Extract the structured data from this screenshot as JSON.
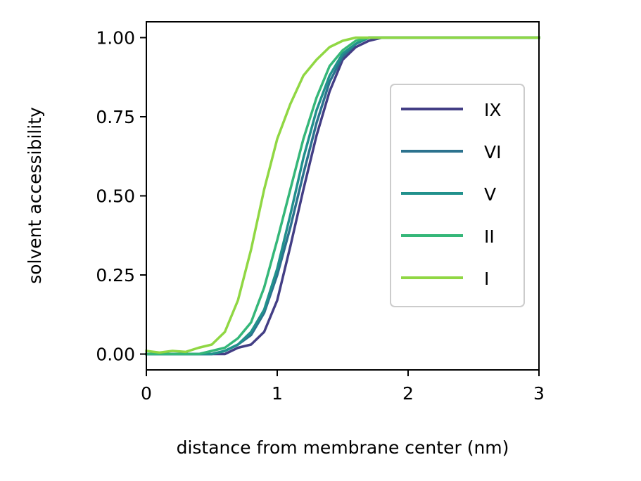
{
  "chart_data": {
    "type": "line",
    "xlabel": "distance from membrane center (nm)",
    "ylabel": "solvent accessibility",
    "xlim": [
      0,
      3
    ],
    "ylim": [
      -0.05,
      1.05
    ],
    "xticks": [
      {
        "value": 0,
        "label": "0"
      },
      {
        "value": 1,
        "label": "1"
      },
      {
        "value": 2,
        "label": "2"
      },
      {
        "value": 3,
        "label": "3"
      }
    ],
    "yticks": [
      {
        "value": 0.0,
        "label": "0.00"
      },
      {
        "value": 0.25,
        "label": "0.25"
      },
      {
        "value": 0.5,
        "label": "0.50"
      },
      {
        "value": 0.75,
        "label": "0.75"
      },
      {
        "value": 1.0,
        "label": "1.00"
      }
    ],
    "grid": false,
    "legend_position": "center-right",
    "x": [
      0.0,
      0.1,
      0.2,
      0.3,
      0.4,
      0.5,
      0.6,
      0.7,
      0.8,
      0.9,
      1.0,
      1.1,
      1.2,
      1.3,
      1.4,
      1.5,
      1.6,
      1.7,
      1.8,
      1.9,
      2.0,
      2.2,
      2.4,
      2.6,
      2.8,
      3.0
    ],
    "series": [
      {
        "name": "IX",
        "color": "#433e85",
        "values": [
          0.0,
          0.0,
          0.0,
          0.0,
          0.0,
          0.0,
          0.0,
          0.02,
          0.03,
          0.07,
          0.17,
          0.34,
          0.52,
          0.69,
          0.83,
          0.93,
          0.97,
          0.99,
          1.0,
          1.0,
          1.0,
          1.0,
          1.0,
          1.0,
          1.0,
          1.0
        ]
      },
      {
        "name": "VI",
        "color": "#2c728e",
        "values": [
          0.0,
          0.0,
          0.0,
          0.0,
          0.0,
          0.0,
          0.01,
          0.03,
          0.06,
          0.13,
          0.25,
          0.4,
          0.57,
          0.73,
          0.86,
          0.94,
          0.98,
          1.0,
          1.0,
          1.0,
          1.0,
          1.0,
          1.0,
          1.0,
          1.0,
          1.0
        ]
      },
      {
        "name": "V",
        "color": "#21918c",
        "values": [
          0.0,
          0.0,
          0.0,
          0.0,
          0.0,
          0.0,
          0.01,
          0.03,
          0.07,
          0.14,
          0.27,
          0.44,
          0.62,
          0.77,
          0.88,
          0.95,
          0.98,
          1.0,
          1.0,
          1.0,
          1.0,
          1.0,
          1.0,
          1.0,
          1.0,
          1.0
        ]
      },
      {
        "name": "II",
        "color": "#35b779",
        "values": [
          0.0,
          0.0,
          0.0,
          0.0,
          0.0,
          0.01,
          0.02,
          0.05,
          0.1,
          0.21,
          0.36,
          0.52,
          0.68,
          0.81,
          0.91,
          0.96,
          0.99,
          1.0,
          1.0,
          1.0,
          1.0,
          1.0,
          1.0,
          1.0,
          1.0,
          1.0
        ]
      },
      {
        "name": "I",
        "color": "#90d743",
        "values": [
          0.01,
          0.005,
          0.01,
          0.007,
          0.02,
          0.03,
          0.07,
          0.17,
          0.33,
          0.52,
          0.68,
          0.79,
          0.88,
          0.93,
          0.97,
          0.99,
          1.0,
          1.0,
          1.0,
          1.0,
          1.0,
          1.0,
          1.0,
          1.0,
          1.0,
          1.0
        ]
      }
    ]
  }
}
